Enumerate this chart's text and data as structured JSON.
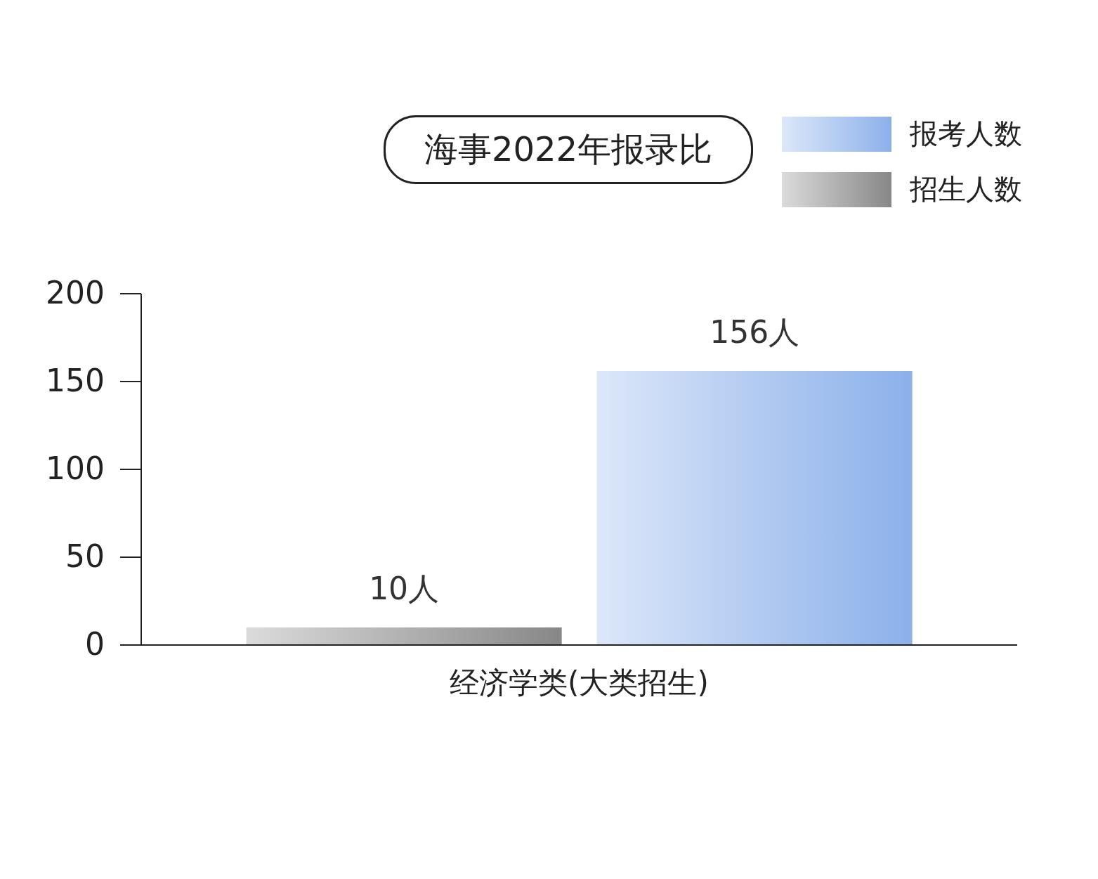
{
  "chart_data": {
    "type": "bar",
    "title": "海事2022年报录比",
    "categories": [
      "经济学类(大类招生)"
    ],
    "series": [
      {
        "name": "招生人数",
        "color": "#878787",
        "values": [
          10
        ],
        "value_labels": [
          "10人"
        ]
      },
      {
        "name": "报考人数",
        "color": "#8bb0ea",
        "values": [
          156
        ],
        "value_labels": [
          "156人"
        ]
      }
    ],
    "ylim": [
      0,
      200
    ],
    "yticks": [
      0,
      50,
      100,
      150,
      200
    ],
    "grid": false,
    "legend": "top right"
  }
}
